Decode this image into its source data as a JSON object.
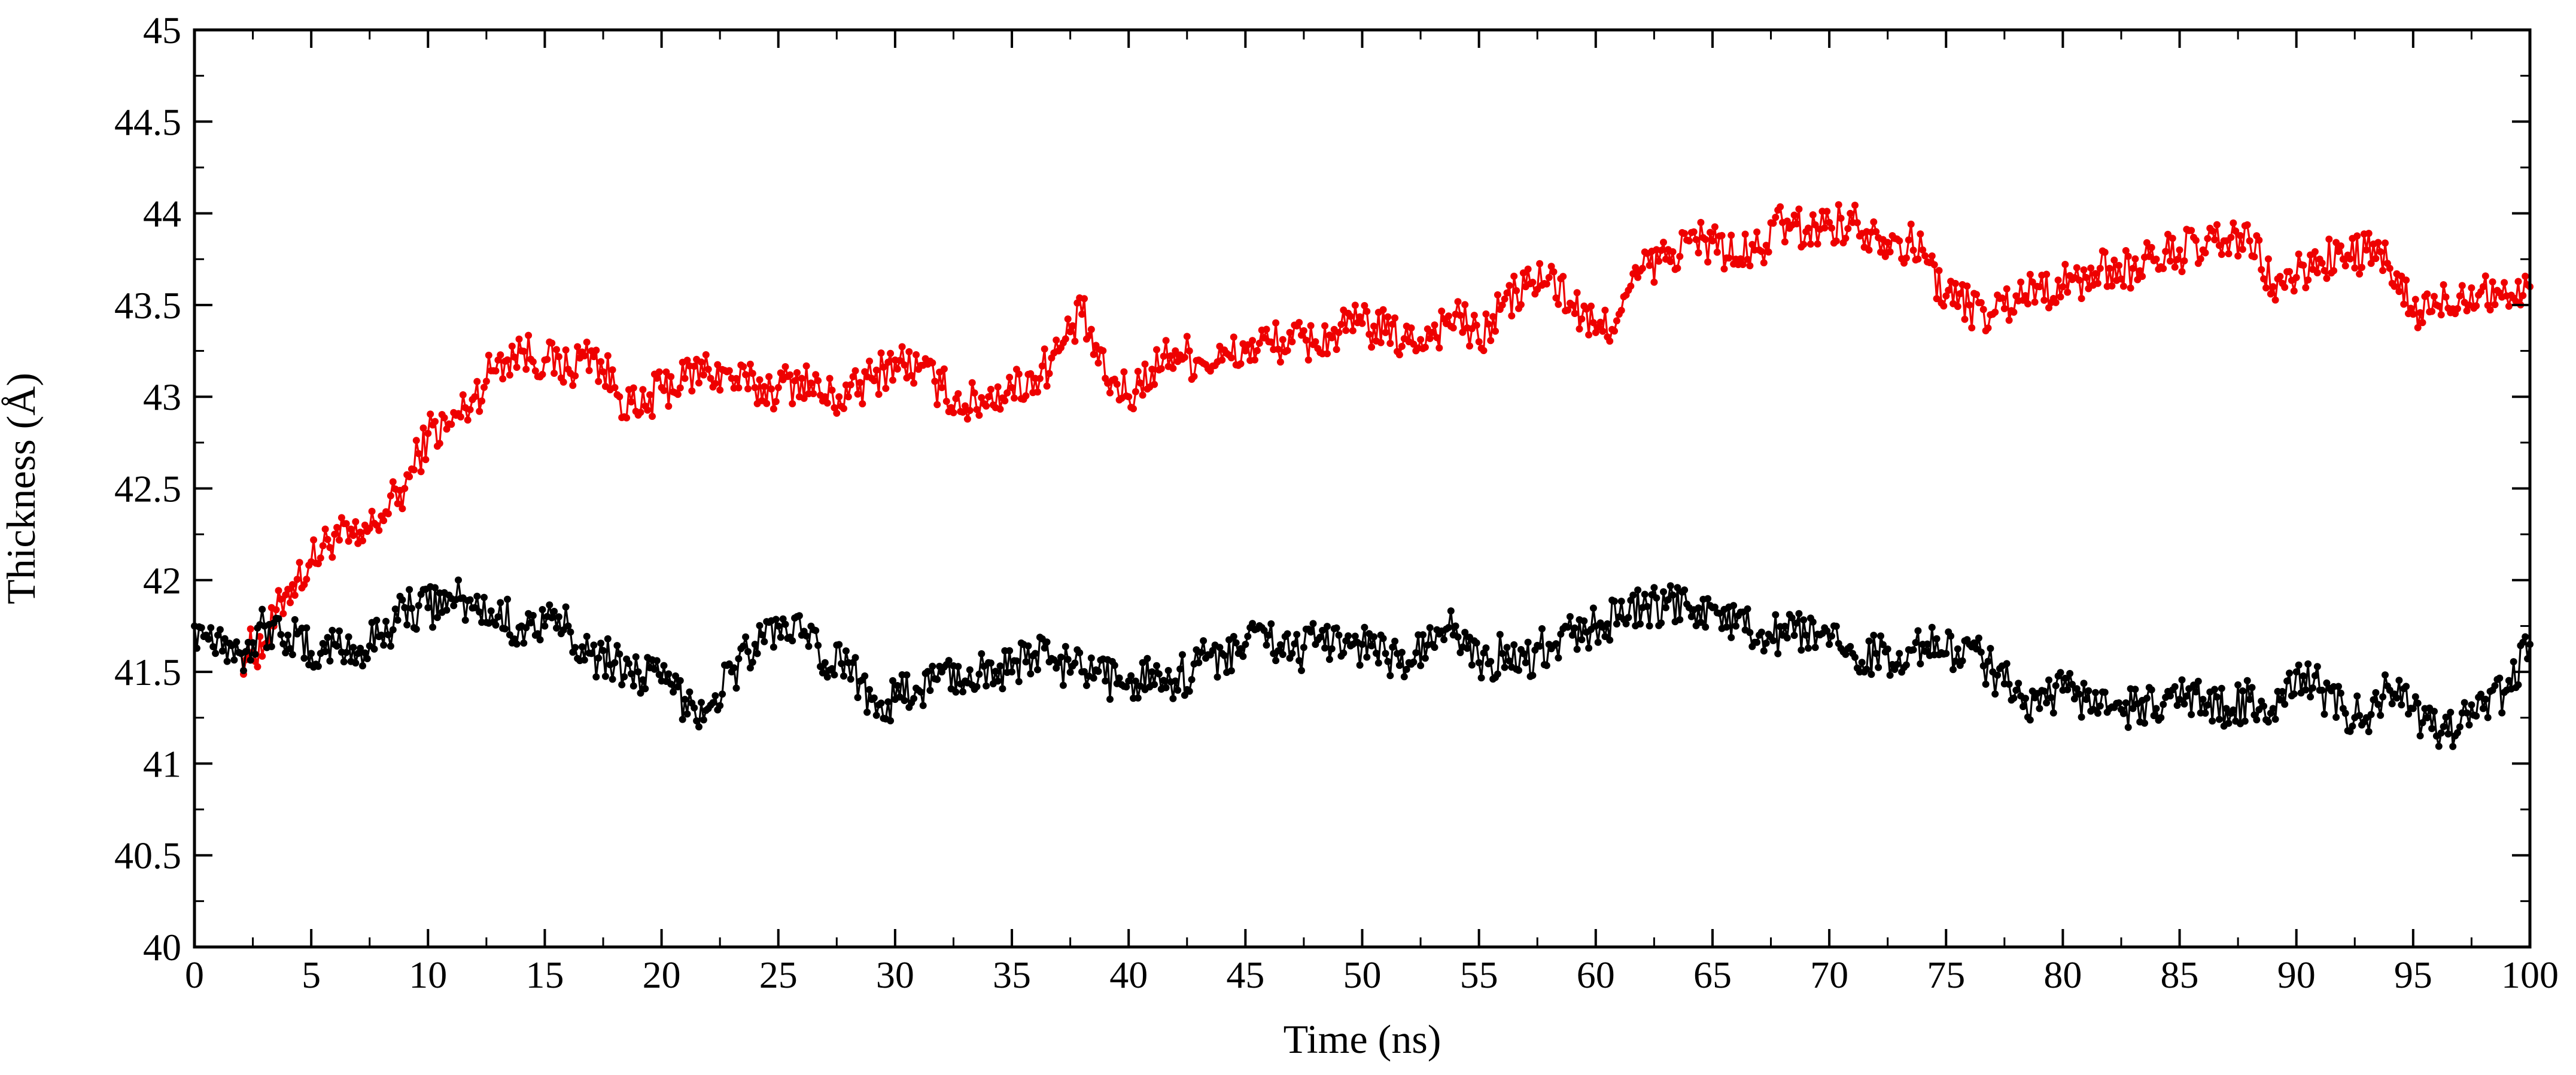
{
  "chart_data": {
    "type": "line",
    "title": "",
    "xlabel": "Time (ns)",
    "ylabel": "Thickness (Å)",
    "xlim": [
      0,
      100
    ],
    "ylim": [
      40,
      45
    ],
    "xticks": [
      0,
      5,
      10,
      15,
      20,
      25,
      30,
      35,
      40,
      45,
      50,
      55,
      60,
      65,
      70,
      75,
      80,
      85,
      90,
      95,
      100
    ],
    "xtick_labels": [
      "0",
      "5",
      "10",
      "15",
      "20",
      "25",
      "30",
      "35",
      "40",
      "45",
      "50",
      "55",
      "60",
      "65",
      "70",
      "75",
      "80",
      "85",
      "90",
      "95",
      "100"
    ],
    "yticks": [
      40,
      40.5,
      41,
      41.5,
      42,
      42.5,
      43,
      43.5,
      44,
      44.5,
      45
    ],
    "ytick_labels": [
      "40",
      "40.5",
      "41",
      "41.5",
      "42",
      "42.5",
      "43",
      "43.5",
      "44",
      "44.5",
      "45"
    ],
    "grid": false,
    "legend": "none",
    "marker": "circle",
    "series": [
      {
        "color": "#ee0000",
        "x": [
          0,
          1,
          2,
          3,
          4,
          5,
          6,
          7,
          8,
          9,
          10,
          11,
          12,
          13,
          14,
          15,
          16,
          17,
          18,
          19,
          20,
          21,
          22,
          23,
          24,
          25,
          26,
          27,
          28,
          29,
          30,
          31,
          32,
          33,
          34,
          35,
          36,
          37,
          38,
          39,
          40,
          41,
          42,
          43,
          44,
          45,
          46,
          47,
          48,
          49,
          50,
          51,
          52,
          53,
          54,
          55,
          56,
          57,
          58,
          59,
          60,
          61,
          62,
          63,
          64,
          65,
          66,
          67,
          68,
          69,
          70,
          71,
          72,
          73,
          74,
          75,
          76,
          77,
          78,
          79,
          80,
          81,
          82,
          83,
          84,
          85,
          86,
          87,
          88,
          89,
          90,
          91,
          92,
          93,
          94,
          95,
          96,
          97,
          98,
          99,
          100
        ],
        "y": [
          null,
          null,
          41.6,
          41.65,
          41.95,
          42.1,
          42.25,
          42.2,
          42.35,
          42.5,
          42.8,
          42.85,
          43.0,
          43.2,
          43.25,
          43.2,
          43.15,
          43.25,
          43.05,
          42.9,
          43.05,
          43.1,
          43.15,
          43.1,
          43.05,
          43.05,
          43.1,
          43.0,
          43.0,
          43.1,
          43.2,
          43.15,
          43.05,
          42.95,
          43.0,
          43.05,
          43.1,
          43.25,
          43.45,
          43.1,
          43.0,
          43.15,
          43.25,
          43.2,
          43.2,
          43.25,
          43.3,
          43.3,
          43.3,
          43.35,
          43.4,
          43.35,
          43.3,
          43.35,
          43.45,
          43.3,
          43.5,
          43.6,
          43.65,
          43.5,
          43.35,
          43.45,
          43.7,
          43.75,
          43.85,
          43.85,
          43.75,
          43.8,
          43.95,
          43.9,
          43.95,
          43.95,
          43.9,
          43.85,
          43.8,
          43.55,
          43.5,
          43.45,
          43.55,
          43.6,
          43.6,
          43.65,
          43.7,
          43.7,
          43.75,
          43.8,
          43.8,
          43.85,
          43.85,
          43.6,
          43.65,
          43.75,
          43.75,
          43.8,
          43.7,
          43.45,
          43.5,
          43.55,
          43.6,
          43.55,
          43.6
        ]
      },
      {
        "color": "#000000",
        "x": [
          0,
          1,
          2,
          3,
          4,
          5,
          6,
          7,
          8,
          9,
          10,
          11,
          12,
          13,
          14,
          15,
          16,
          17,
          18,
          19,
          20,
          21,
          22,
          23,
          24,
          25,
          26,
          27,
          28,
          29,
          30,
          31,
          32,
          33,
          34,
          35,
          36,
          37,
          38,
          39,
          40,
          41,
          42,
          43,
          44,
          45,
          46,
          47,
          48,
          49,
          50,
          51,
          52,
          53,
          54,
          55,
          56,
          57,
          58,
          59,
          60,
          61,
          62,
          63,
          64,
          65,
          66,
          67,
          68,
          69,
          70,
          71,
          72,
          73,
          74,
          75,
          76,
          77,
          78,
          79,
          80,
          81,
          82,
          83,
          84,
          85,
          86,
          87,
          88,
          89,
          90,
          91,
          92,
          93,
          94,
          95,
          96,
          97,
          98,
          99,
          100
        ],
        "y": [
          41.75,
          41.7,
          41.6,
          41.75,
          41.7,
          41.6,
          41.65,
          41.6,
          41.7,
          41.85,
          41.85,
          41.9,
          41.85,
          41.8,
          41.75,
          41.75,
          41.75,
          41.6,
          41.55,
          41.5,
          41.45,
          41.35,
          41.3,
          41.5,
          41.65,
          41.75,
          41.7,
          41.55,
          41.55,
          41.35,
          41.35,
          41.4,
          41.5,
          41.45,
          41.55,
          41.5,
          41.6,
          41.55,
          41.5,
          41.45,
          41.45,
          41.5,
          41.45,
          41.55,
          41.6,
          41.65,
          41.7,
          41.6,
          41.65,
          41.7,
          41.65,
          41.6,
          41.55,
          41.65,
          41.75,
          41.55,
          41.6,
          41.55,
          41.65,
          41.7,
          41.75,
          41.8,
          41.85,
          41.85,
          41.85,
          41.85,
          41.75,
          41.7,
          41.7,
          41.7,
          41.65,
          41.6,
          41.6,
          41.6,
          41.65,
          41.6,
          41.65,
          41.5,
          41.4,
          41.3,
          41.4,
          41.35,
          41.3,
          41.3,
          41.3,
          41.35,
          41.35,
          41.3,
          41.35,
          41.3,
          41.5,
          41.4,
          41.3,
          41.25,
          41.4,
          41.3,
          41.15,
          41.2,
          41.3,
          41.4,
          41.65
        ]
      }
    ]
  }
}
